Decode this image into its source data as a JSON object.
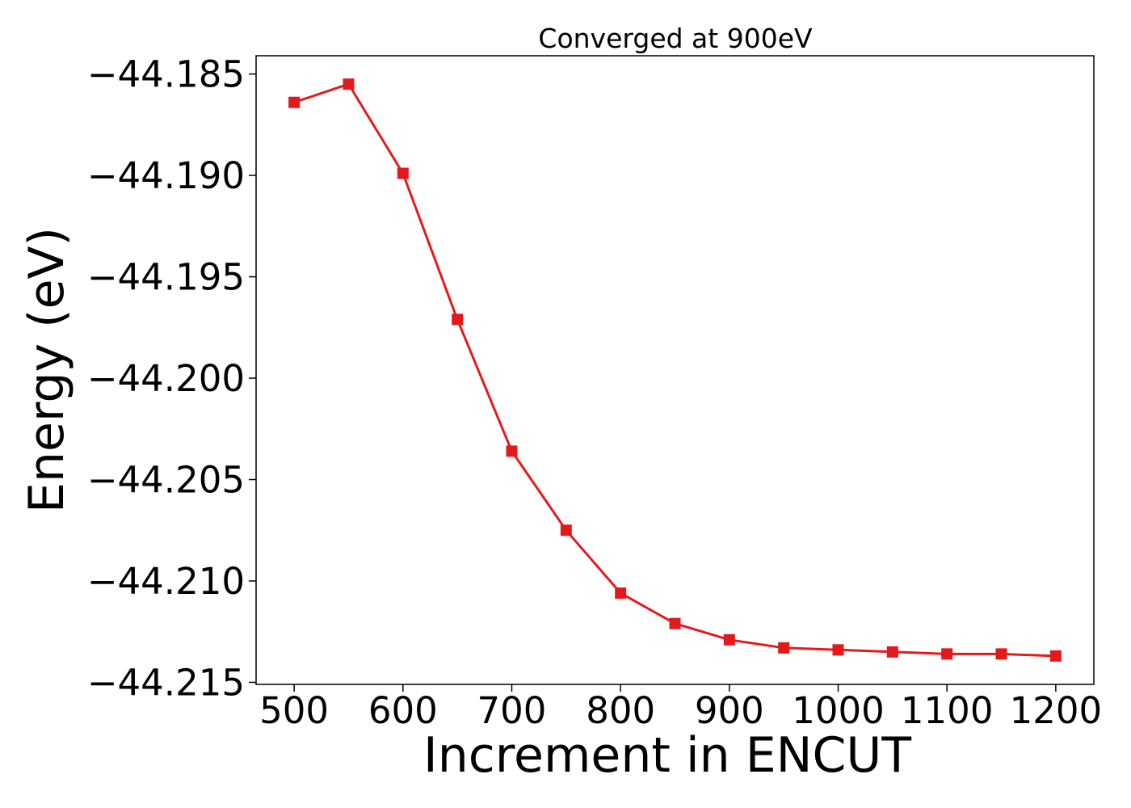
{
  "chart_data": {
    "type": "line",
    "title": "Converged at 900eV",
    "xlabel": "Increment in ENCUT",
    "ylabel": "Energy (eV)",
    "xlim": [
      465,
      1235
    ],
    "ylim": [
      -44.2151,
      -44.1841
    ],
    "x_ticks": [
      500,
      600,
      700,
      800,
      900,
      1000,
      1100,
      1200
    ],
    "y_ticks": [
      -44.185,
      -44.19,
      -44.195,
      -44.2,
      -44.205,
      -44.21,
      -44.215
    ],
    "y_tick_labels": [
      "−44.185",
      "−44.190",
      "−44.195",
      "−44.200",
      "−44.205",
      "−44.210",
      "−44.215"
    ],
    "grid": false,
    "series": [
      {
        "color": "#e31a1c",
        "marker": "square",
        "x": [
          500,
          550,
          600,
          650,
          700,
          750,
          800,
          850,
          900,
          950,
          1000,
          1050,
          1100,
          1150,
          1200
        ],
        "y": [
          -44.1864,
          -44.1855,
          -44.1899,
          -44.1971,
          -44.2036,
          -44.2075,
          -44.2106,
          -44.2121,
          -44.2129,
          -44.2133,
          -44.2134,
          -44.2135,
          -44.2136,
          -44.2136,
          -44.2137
        ]
      }
    ]
  }
}
